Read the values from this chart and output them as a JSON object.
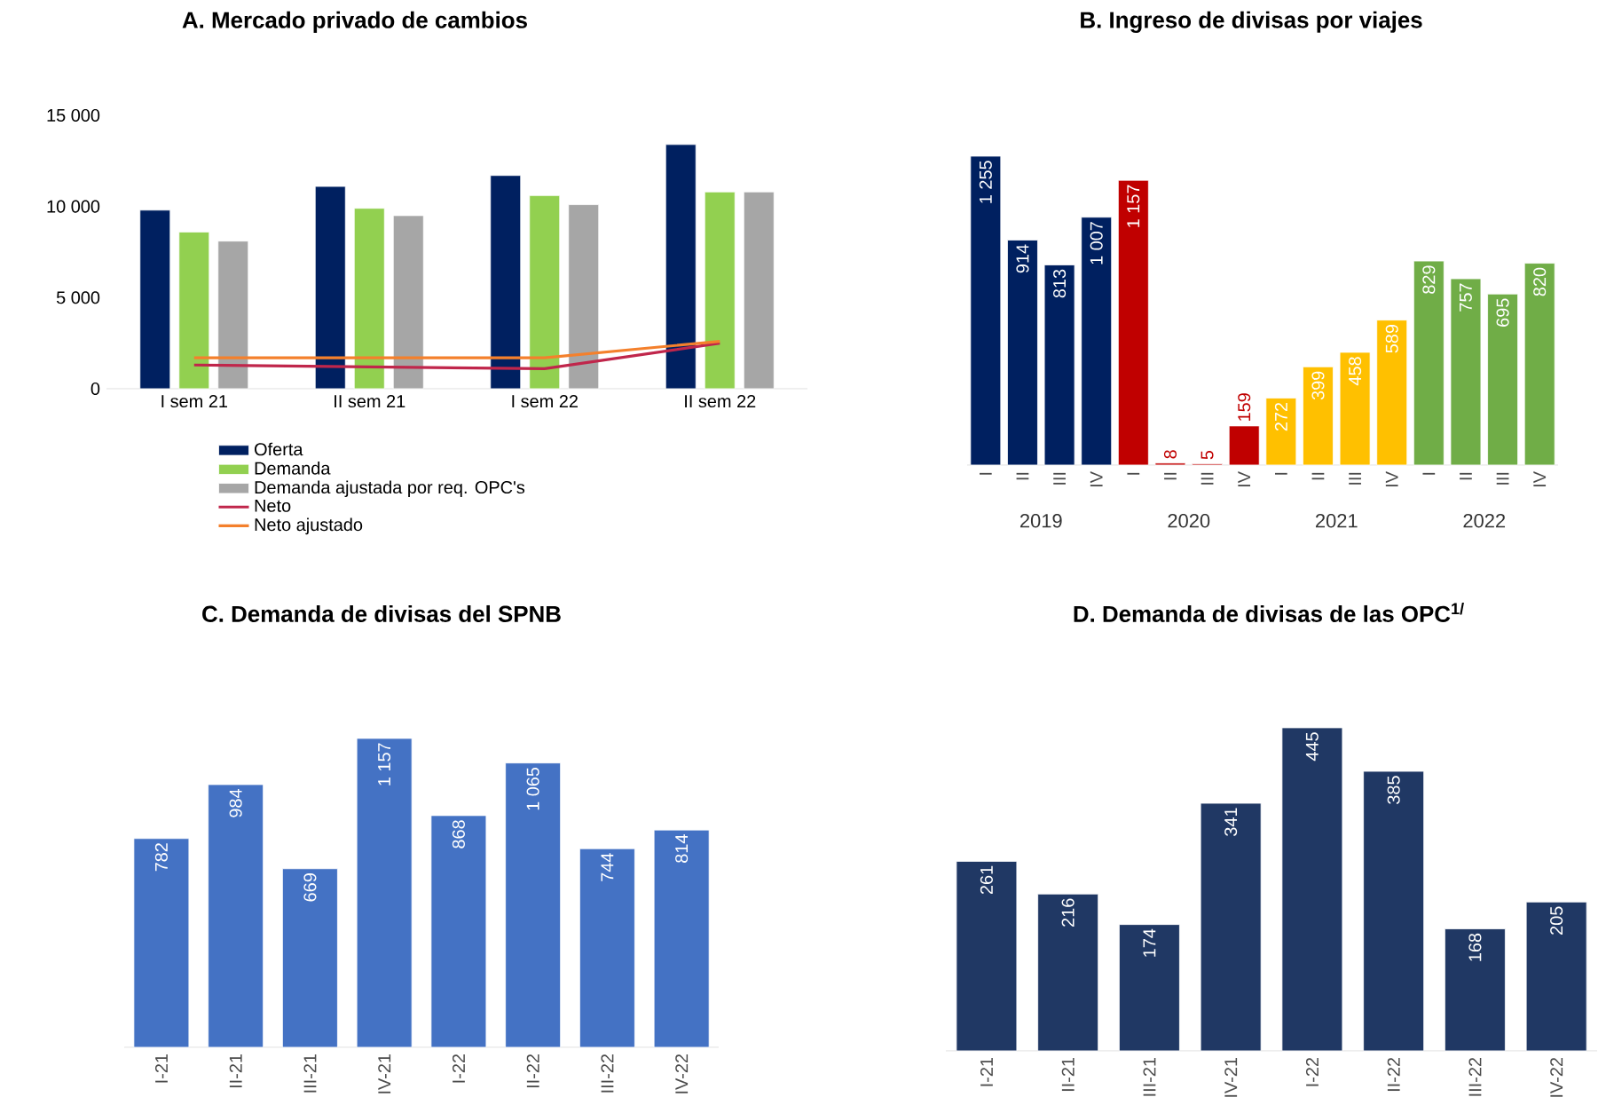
{
  "chart_data": [
    {
      "type": "bar",
      "title": "A. Mercado privado de cambios",
      "categories": [
        "I sem 21",
        "II sem 21",
        "I sem 22",
        "II sem 22"
      ],
      "series": [
        {
          "name": "Oferta",
          "color": "#002060",
          "values": [
            9800,
            11100,
            11700,
            13400
          ]
        },
        {
          "name": "Demanda",
          "color": "#92d050",
          "values": [
            8600,
            9900,
            10600,
            10800
          ]
        },
        {
          "name": "Demanda ajustada por req. OPC's",
          "color": "#a6a6a6",
          "values": [
            8100,
            9500,
            10100,
            10800
          ]
        },
        {
          "name": "Neto",
          "type": "line",
          "color": "#c0264b",
          "values": [
            1300,
            1200,
            1100,
            2500
          ]
        },
        {
          "name": "Neto ajustado",
          "type": "line",
          "color": "#f4802c",
          "values": [
            1700,
            1700,
            1700,
            2600
          ]
        }
      ],
      "ylim": [
        0,
        15000
      ],
      "yticks": [
        0,
        {
          "value": 5000,
          "label": "5 000"
        },
        {
          "value": 10000,
          "label": "10 000"
        },
        {
          "value": 15000,
          "label": "15 000"
        }
      ],
      "legend": "bottom"
    },
    {
      "type": "bar",
      "title": "B. Ingreso de divisas por viajes",
      "categories": [
        "I",
        "II",
        "III",
        "IV",
        "I",
        "II",
        "III",
        "IV",
        "I",
        "II",
        "III",
        "IV",
        "I",
        "II",
        "III",
        "IV"
      ],
      "series": [
        {
          "name": "2019",
          "color": "#002060",
          "values": [
            1255,
            914,
            813,
            1007,
            null,
            null,
            null,
            null,
            null,
            null,
            null,
            null,
            null,
            null,
            null,
            null
          ],
          "value_labels": [
            "1 255",
            "914",
            "813",
            "1 007",
            null,
            null,
            null,
            null,
            null,
            null,
            null,
            null,
            null,
            null,
            null,
            null
          ]
        },
        {
          "name": "2020",
          "color": "#c00000",
          "values": [
            null,
            null,
            null,
            null,
            1157,
            8,
            5,
            159,
            null,
            null,
            null,
            null,
            null,
            null,
            null,
            null
          ],
          "value_labels": [
            null,
            null,
            null,
            null,
            "1 157",
            "8",
            "5",
            "159",
            null,
            null,
            null,
            null,
            null,
            null,
            null,
            null
          ]
        },
        {
          "name": "2021",
          "color": "#ffc000",
          "values": [
            null,
            null,
            null,
            null,
            null,
            null,
            null,
            null,
            272,
            399,
            458,
            589,
            null,
            null,
            null,
            null
          ],
          "value_labels": [
            null,
            null,
            null,
            null,
            null,
            null,
            null,
            null,
            "272",
            "399",
            "458",
            "589",
            null,
            null,
            null,
            null
          ]
        },
        {
          "name": "2022",
          "color": "#70ad47",
          "values": [
            null,
            null,
            null,
            null,
            null,
            null,
            null,
            null,
            null,
            null,
            null,
            null,
            829,
            757,
            695,
            820
          ],
          "value_labels": [
            null,
            null,
            null,
            null,
            null,
            null,
            null,
            null,
            null,
            null,
            null,
            null,
            "829",
            "757",
            "695",
            "820"
          ]
        }
      ]
    },
    {
      "type": "bar",
      "title": "C. Demanda de divisas del SPNB",
      "categories": [
        "I-21",
        "II-21",
        "III-21",
        "IV-21",
        "I-22",
        "II-22",
        "III-22",
        "IV-22"
      ],
      "values": [
        782,
        984,
        669,
        1157,
        868,
        1065,
        744,
        814
      ],
      "value_labels": [
        "782",
        "984",
        "669",
        "1 157",
        "868",
        "1 065",
        "744",
        "814"
      ],
      "color": "#4472c4"
    },
    {
      "type": "bar",
      "title": "D. Demanda de divisas de las OPC$^{1/}$",
      "categories": [
        "I-21",
        "II-21",
        "III-21",
        "IV-21",
        "I-22",
        "II-22",
        "III-22",
        "IV-22"
      ],
      "values": [
        261,
        216,
        174,
        341,
        445,
        385,
        168,
        205
      ],
      "value_labels": [
        "261",
        "216",
        "174",
        "341",
        "445",
        "385",
        "168",
        "205"
      ],
      "color": "#203864"
    }
  ]
}
